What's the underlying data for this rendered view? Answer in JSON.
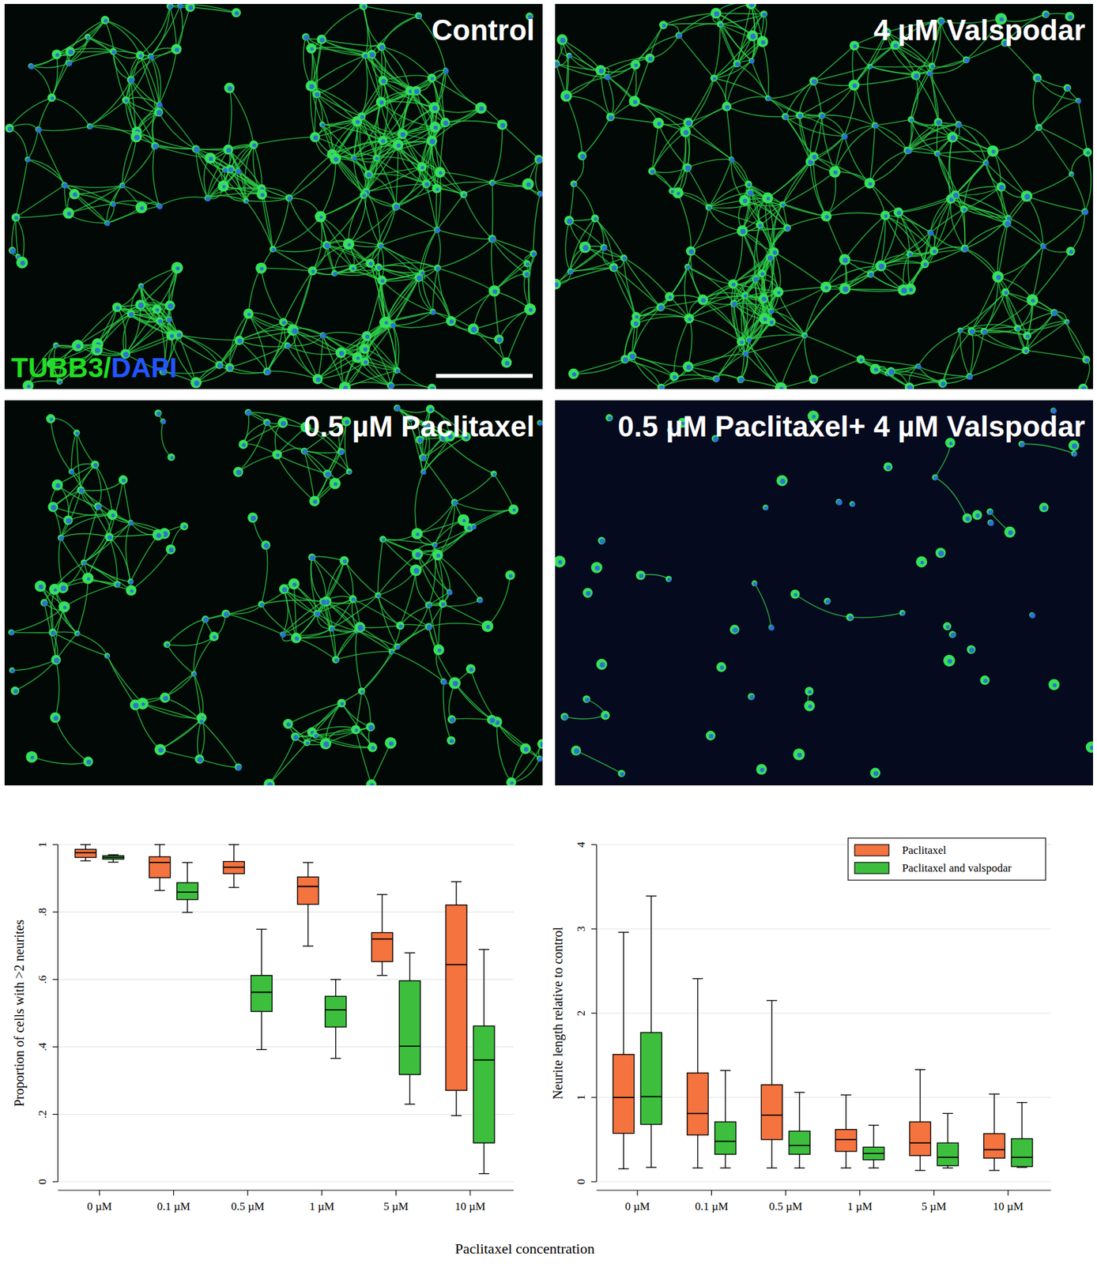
{
  "images": [
    {
      "label": "Control"
    },
    {
      "label": "4 µM Valspodar"
    },
    {
      "label": "0.5 µM Paclitaxel"
    },
    {
      "label": "0.5 µM Paclitaxel+ 4 µM Valspodar"
    }
  ],
  "stain_label": [
    {
      "text": "TUBB3/",
      "color": "#22dd22"
    },
    {
      "text": "DAPI",
      "color": "#2255ff"
    }
  ],
  "xlabel": "Paclitaxel concentration",
  "chart_data": [
    {
      "type": "box",
      "ylabel": "Proportion of cells with >2 neurites",
      "categories": [
        "0 µM",
        "0.1 µM",
        "0.5 µM",
        "1 µM",
        "5 µM",
        "10 µM"
      ],
      "ylim": [
        0,
        1
      ],
      "yticks": [
        0,
        {
          "value": 0.2,
          "label": ".2"
        },
        {
          "value": 0.4,
          "label": ".4"
        },
        {
          "value": 0.6,
          "label": ".6"
        },
        {
          "value": 0.8,
          "label": ".8"
        },
        1
      ],
      "grid": true,
      "series": [
        {
          "color": "#f4733f",
          "values": [
            {
              "min": 0.952,
              "q1": 0.962,
              "median": 0.976,
              "q3": 0.986,
              "max": 1.0
            },
            {
              "min": 0.864,
              "q1": 0.902,
              "median": 0.947,
              "q3": 0.964,
              "max": 1.0
            },
            {
              "min": 0.873,
              "q1": 0.914,
              "median": 0.933,
              "q3": 0.95,
              "max": 1.0
            },
            {
              "min": 0.699,
              "q1": 0.823,
              "median": 0.876,
              "q3": 0.904,
              "max": 0.947
            },
            {
              "min": 0.612,
              "q1": 0.653,
              "median": 0.72,
              "q3": 0.739,
              "max": 0.852
            },
            {
              "min": 0.196,
              "q1": 0.271,
              "median": 0.644,
              "q3": 0.821,
              "max": 0.89
            }
          ]
        },
        {
          "color": "#3dbf3d",
          "values": [
            {
              "min": 0.948,
              "q1": 0.957,
              "median": 0.962,
              "q3": 0.967,
              "max": 0.97
            },
            {
              "min": 0.799,
              "q1": 0.837,
              "median": 0.859,
              "q3": 0.887,
              "max": 0.947
            },
            {
              "min": 0.392,
              "q1": 0.505,
              "median": 0.562,
              "q3": 0.612,
              "max": 0.749
            },
            {
              "min": 0.366,
              "q1": 0.459,
              "median": 0.51,
              "q3": 0.55,
              "max": 0.6
            },
            {
              "min": 0.23,
              "q1": 0.318,
              "median": 0.402,
              "q3": 0.596,
              "max": 0.679
            },
            {
              "min": 0.024,
              "q1": 0.115,
              "median": 0.361,
              "q3": 0.462,
              "max": 0.689
            }
          ]
        }
      ]
    },
    {
      "type": "box",
      "ylabel": "Neurite length relative to control",
      "categories": [
        "0 µM",
        "0.1 µM",
        "0.5 µM",
        "1 µM",
        "5 µM",
        "10 µM"
      ],
      "ylim": [
        0,
        4
      ],
      "yticks": [
        0,
        1,
        2,
        3,
        4
      ],
      "grid": true,
      "legend": "top-right",
      "series": [
        {
          "name": "Paclitaxel",
          "color": "#f4733f",
          "values": [
            {
              "min": 0.153,
              "q1": 0.574,
              "median": 1.0,
              "q3": 1.51,
              "max": 2.96
            },
            {
              "min": 0.163,
              "q1": 0.555,
              "median": 0.81,
              "q3": 1.29,
              "max": 2.41
            },
            {
              "min": 0.163,
              "q1": 0.5,
              "median": 0.79,
              "q3": 1.15,
              "max": 2.15
            },
            {
              "min": 0.163,
              "q1": 0.36,
              "median": 0.5,
              "q3": 0.62,
              "max": 1.03
            },
            {
              "min": 0.134,
              "q1": 0.31,
              "median": 0.46,
              "q3": 0.71,
              "max": 1.33
            },
            {
              "min": 0.134,
              "q1": 0.28,
              "median": 0.38,
              "q3": 0.57,
              "max": 1.04
            }
          ]
        },
        {
          "name": "Paclitaxel and valspodar",
          "color": "#3dbf3d",
          "values": [
            {
              "min": 0.17,
              "q1": 0.68,
              "median": 1.01,
              "q3": 1.77,
              "max": 3.39
            },
            {
              "min": 0.163,
              "q1": 0.325,
              "median": 0.48,
              "q3": 0.71,
              "max": 1.32
            },
            {
              "min": 0.163,
              "q1": 0.325,
              "median": 0.43,
              "q3": 0.6,
              "max": 1.06
            },
            {
              "min": 0.163,
              "q1": 0.26,
              "median": 0.335,
              "q3": 0.41,
              "max": 0.67
            },
            {
              "min": 0.163,
              "q1": 0.19,
              "median": 0.29,
              "q3": 0.46,
              "max": 0.81
            },
            {
              "min": 0.17,
              "q1": 0.18,
              "median": 0.29,
              "q3": 0.51,
              "max": 0.94
            }
          ]
        }
      ]
    }
  ]
}
